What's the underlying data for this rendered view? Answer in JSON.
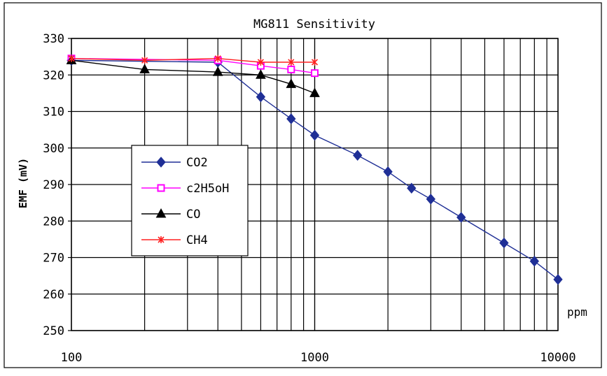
{
  "chart_data": {
    "type": "line",
    "title": "MG811 Sensitivity",
    "xlabel": "ppm",
    "ylabel": "EMF (mV)",
    "x_scale": "log",
    "xlim": [
      100,
      10000
    ],
    "ylim": [
      250,
      330
    ],
    "y_ticks": [
      250,
      260,
      270,
      280,
      290,
      300,
      310,
      320,
      330
    ],
    "x_tick_labels": [
      "100",
      "1000",
      "10000"
    ],
    "grid": true,
    "legend_position": "left",
    "series": [
      {
        "name": "CO2",
        "color": "#1f2f96",
        "marker": "diamond",
        "points": [
          [
            100,
            324
          ],
          [
            400,
            323.5
          ],
          [
            600,
            314
          ],
          [
            800,
            308
          ],
          [
            1000,
            303.5
          ],
          [
            1500,
            298
          ],
          [
            2000,
            293.5
          ],
          [
            2500,
            289
          ],
          [
            3000,
            286
          ],
          [
            4000,
            281
          ],
          [
            6000,
            274
          ],
          [
            8000,
            269
          ],
          [
            10000,
            264
          ]
        ]
      },
      {
        "name": "c2H5oH",
        "color": "#ff00ff",
        "marker": "open-square",
        "points": [
          [
            100,
            324.5
          ],
          [
            400,
            324
          ],
          [
            600,
            322.5
          ],
          [
            800,
            321.5
          ],
          [
            1000,
            320.5
          ]
        ]
      },
      {
        "name": "CO",
        "color": "#000000",
        "marker": "triangle",
        "points": [
          [
            100,
            324
          ],
          [
            200,
            321.5
          ],
          [
            400,
            320.8
          ],
          [
            600,
            320
          ],
          [
            800,
            317.5
          ],
          [
            1000,
            315
          ]
        ]
      },
      {
        "name": "CH4",
        "color": "#ff2020",
        "marker": "x",
        "points": [
          [
            100,
            324.5
          ],
          [
            200,
            324
          ],
          [
            400,
            324.5
          ],
          [
            600,
            323.5
          ],
          [
            800,
            323.5
          ],
          [
            1000,
            323.5
          ]
        ]
      }
    ]
  }
}
